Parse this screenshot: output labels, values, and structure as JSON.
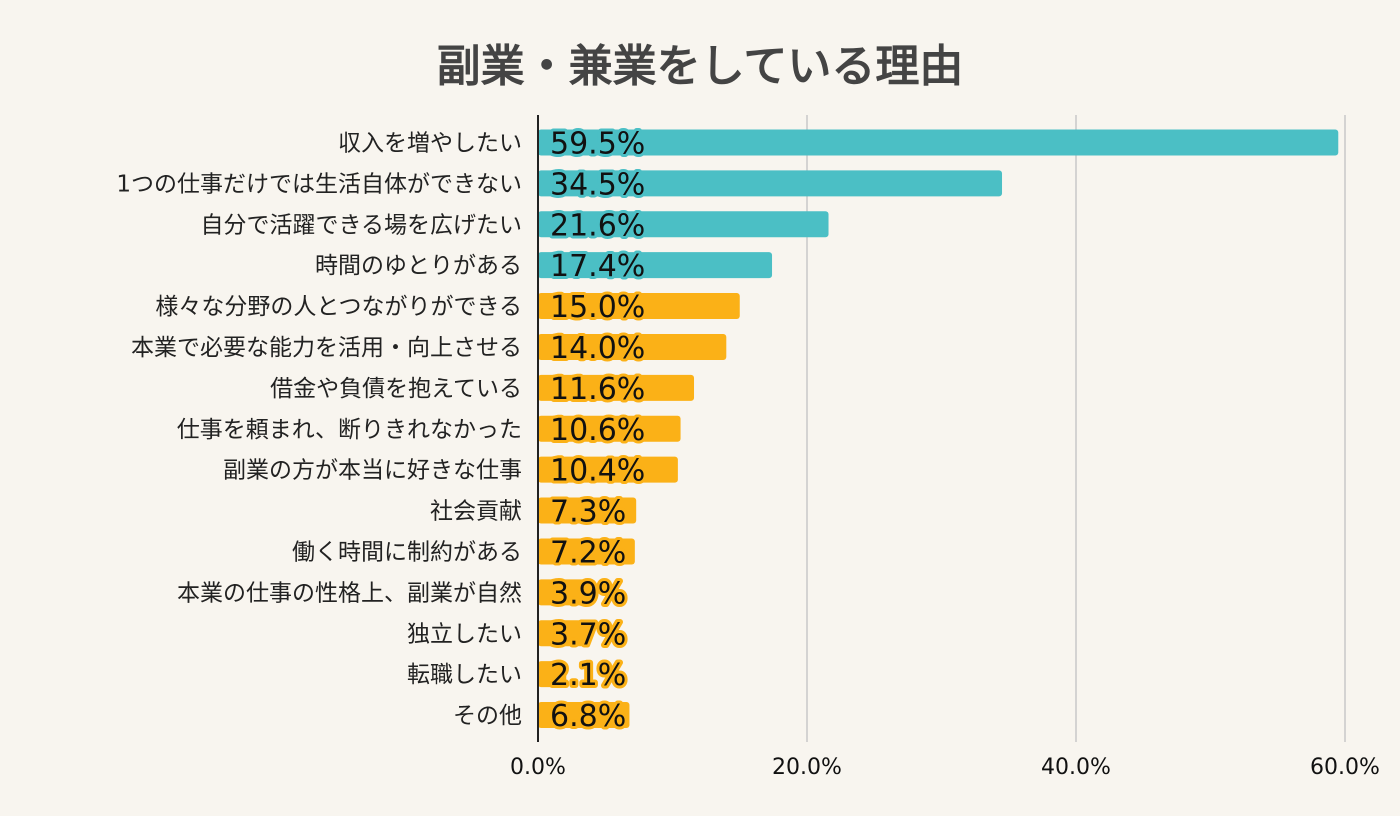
{
  "chart_data": {
    "type": "bar",
    "orientation": "horizontal",
    "title": "副業・兼業をしている理由",
    "xlabel": "",
    "ylabel": "",
    "xlim": [
      0,
      60
    ],
    "x_ticks": [
      "0.0%",
      "20.0%",
      "40.0%",
      "60.0%"
    ],
    "grid": true,
    "legend": "none",
    "categories": [
      "収入を増やしたい",
      "1つの仕事だけでは生活自体ができない",
      "自分で活躍できる場を広げたい",
      "時間のゆとりがある",
      "様々な分野の人とつながりができる",
      "本業で必要な能力を活用・向上させる",
      "借金や負債を抱えている",
      "仕事を頼まれ、断りきれなかった",
      "副業の方が本当に好きな仕事",
      "社会貢献",
      "働く時間に制約がある",
      "本業の仕事の性格上、副業が自然",
      "独立したい",
      "転職したい",
      "その他"
    ],
    "values": [
      59.5,
      34.5,
      21.6,
      17.4,
      15.0,
      14.0,
      11.6,
      10.6,
      10.4,
      7.3,
      7.2,
      3.9,
      3.7,
      2.1,
      6.8
    ],
    "value_labels": [
      "59.5%",
      "34.5%",
      "21.6%",
      "17.4%",
      "15.0%",
      "14.0%",
      "11.6%",
      "10.6%",
      "10.4%",
      "7.3%",
      "7.2%",
      "3.9%",
      "3.7%",
      "2.1%",
      "6.8%"
    ],
    "colors": {
      "highlight": "#4bbfc5",
      "default": "#fbb117",
      "highlight_count": 4,
      "axis": "#222222",
      "grid": "#c8c8c8"
    }
  }
}
